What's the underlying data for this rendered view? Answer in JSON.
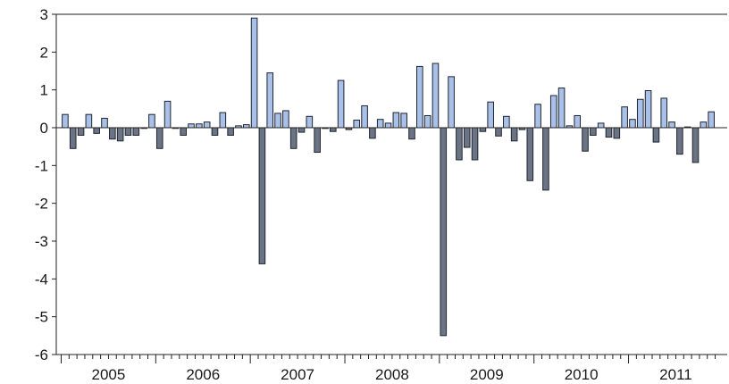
{
  "chart_data": {
    "type": "bar",
    "title": "",
    "xlabel": "",
    "ylabel": "",
    "ylim": [
      -6,
      3
    ],
    "yticks": [
      3,
      2,
      1,
      0,
      -1,
      -2,
      -3,
      -4,
      -5,
      -6
    ],
    "x_tick_labels": [
      "2005",
      "2006",
      "2007",
      "2008",
      "2009",
      "2010",
      "2011"
    ],
    "x_start": "2005-01",
    "x_end": "2011-08",
    "grid": false,
    "legend": "none",
    "colors": {
      "light": "#a9c1e8",
      "dark": "#6b7484",
      "edge": "#1f2430"
    },
    "values": [
      0.35,
      -0.55,
      -0.2,
      0.35,
      -0.15,
      0.25,
      -0.3,
      -0.35,
      -0.2,
      -0.2,
      0.0,
      0.35,
      -0.55,
      0.7,
      0.0,
      -0.2,
      0.1,
      0.1,
      0.15,
      -0.2,
      0.4,
      -0.2,
      0.05,
      0.08,
      2.9,
      -3.6,
      1.45,
      0.38,
      0.45,
      -0.55,
      -0.12,
      0.3,
      -0.65,
      -0.02,
      -0.1,
      1.25,
      -0.05,
      0.2,
      0.58,
      -0.28,
      0.22,
      0.12,
      0.4,
      0.38,
      -0.3,
      1.62,
      0.32,
      1.7,
      -5.5,
      1.35,
      -0.85,
      -0.52,
      -0.85,
      -0.1,
      0.68,
      -0.22,
      0.3,
      -0.35,
      -0.05,
      -1.4,
      0.62,
      -1.65,
      0.85,
      1.05,
      0.05,
      0.32,
      -0.62,
      -0.2,
      0.12,
      -0.25,
      -0.28,
      0.55,
      0.22,
      0.75,
      0.98,
      -0.38,
      0.78,
      0.15,
      -0.7,
      0.02,
      -0.92,
      0.15,
      0.42
    ]
  }
}
